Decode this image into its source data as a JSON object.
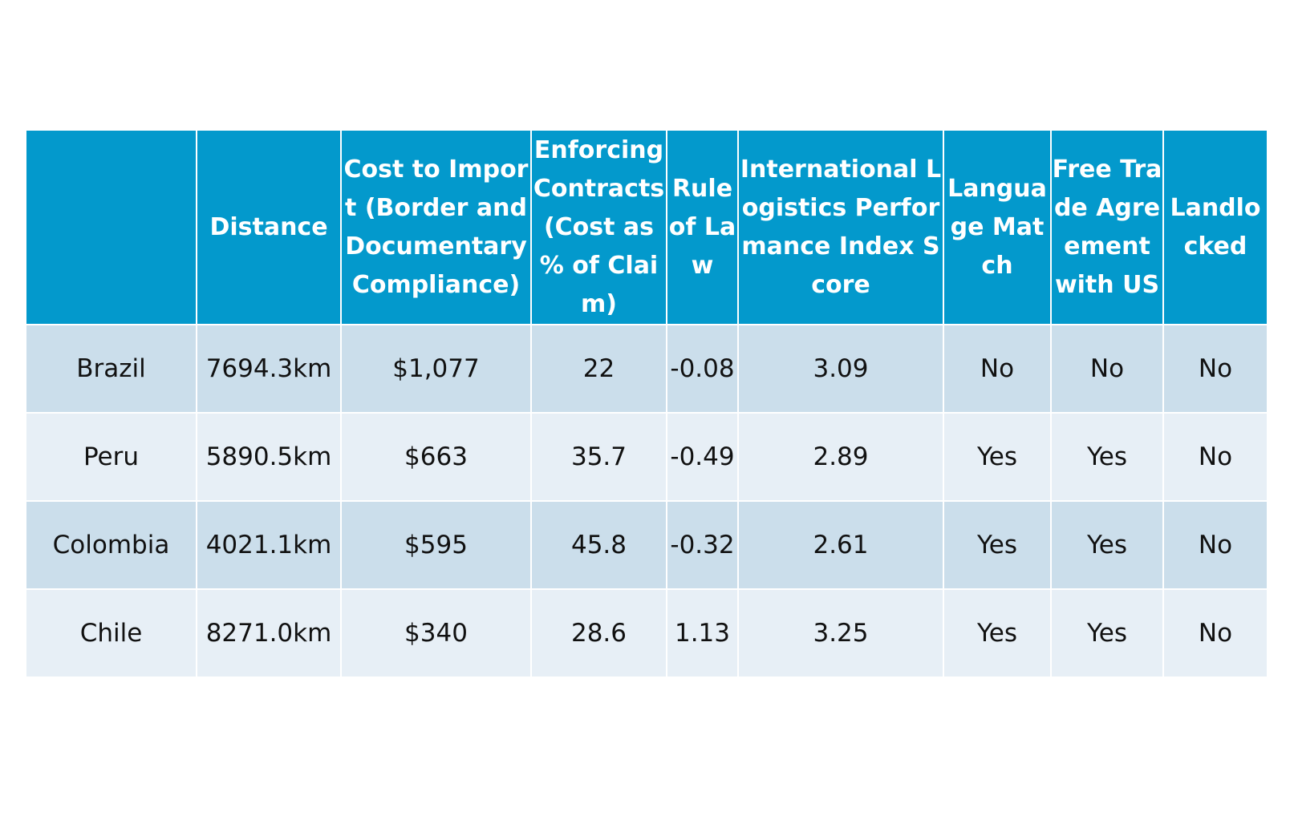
{
  "table": {
    "columns": [
      "",
      "Distance",
      "Cost to Import (Border and Documentary Compliance)",
      "Enforcing Contracts (Cost as % of Claim)",
      "Rule of Law",
      "International Logistics Performance Index Score",
      "Language Match",
      "Free Trade Agreement with US",
      "Landlocked"
    ],
    "rows": [
      [
        "Brazil",
        "7694.3km",
        "$1,077",
        "22",
        "-0.08",
        "3.09",
        "No",
        "No",
        "No"
      ],
      [
        "Peru",
        "5890.5km",
        "$663",
        "35.7",
        "-0.49",
        "2.89",
        "Yes",
        "Yes",
        "No"
      ],
      [
        "Colombia",
        "4021.1km",
        "$595",
        "45.8",
        "-0.32",
        "2.61",
        "Yes",
        "Yes",
        "No"
      ],
      [
        "Chile",
        "8271.0km",
        "$340",
        "28.6",
        "1.13",
        "3.25",
        "Yes",
        "Yes",
        "No"
      ]
    ]
  },
  "colors": {
    "header_bg": "#0399cc",
    "row_odd_bg": "#cbdeeb",
    "row_even_bg": "#e7eff6"
  }
}
